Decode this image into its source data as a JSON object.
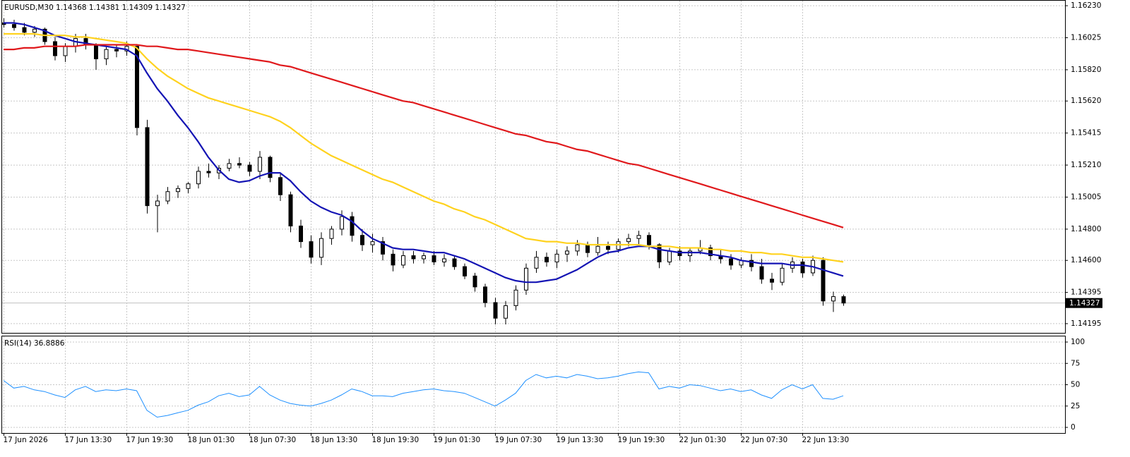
{
  "chart_data": [
    {
      "type": "candlestick",
      "title": "EURUSD,M30  1.14368 1.14381 1.14309 1.14327",
      "up_color": "#ffffff",
      "down_color": "#000000",
      "ohlc": [
        [
          1.1612,
          1.1615,
          1.1609,
          1.1611
        ],
        [
          1.1611,
          1.1614,
          1.1607,
          1.1609
        ],
        [
          1.1609,
          1.1612,
          1.1604,
          1.1606
        ],
        [
          1.1606,
          1.161,
          1.1603,
          1.1608
        ],
        [
          1.1608,
          1.1609,
          1.1598,
          1.16
        ],
        [
          1.16,
          1.1603,
          1.1588,
          1.1591
        ],
        [
          1.1591,
          1.1599,
          1.1587,
          1.1597
        ],
        [
          1.1597,
          1.1605,
          1.1593,
          1.1602
        ],
        [
          1.1602,
          1.1605,
          1.1595,
          1.1598
        ],
        [
          1.1598,
          1.1599,
          1.1582,
          1.1589
        ],
        [
          1.1589,
          1.1597,
          1.1585,
          1.1595
        ],
        [
          1.1595,
          1.1598,
          1.159,
          1.1594
        ],
        [
          1.1594,
          1.16,
          1.1591,
          1.1597
        ],
        [
          1.1597,
          1.1598,
          1.154,
          1.1545
        ],
        [
          1.1545,
          1.155,
          1.149,
          1.1495
        ],
        [
          1.1495,
          1.1502,
          1.1478,
          1.1498
        ],
        [
          1.1498,
          1.1507,
          1.1496,
          1.1504
        ],
        [
          1.1504,
          1.1508,
          1.15,
          1.1506
        ],
        [
          1.1506,
          1.151,
          1.1503,
          1.1509
        ],
        [
          1.1509,
          1.152,
          1.1506,
          1.1517
        ],
        [
          1.1517,
          1.1522,
          1.1513,
          1.1516
        ],
        [
          1.1516,
          1.1521,
          1.1512,
          1.1519
        ],
        [
          1.1519,
          1.1525,
          1.1517,
          1.1522
        ],
        [
          1.1522,
          1.1526,
          1.1519,
          1.1521
        ],
        [
          1.1521,
          1.1523,
          1.1514,
          1.1517
        ],
        [
          1.1517,
          1.153,
          1.1512,
          1.1526
        ],
        [
          1.1526,
          1.1527,
          1.151,
          1.1513
        ],
        [
          1.1513,
          1.1516,
          1.1498,
          1.1502
        ],
        [
          1.1502,
          1.1504,
          1.1478,
          1.1482
        ],
        [
          1.1482,
          1.1486,
          1.1468,
          1.1472
        ],
        [
          1.1472,
          1.1476,
          1.1458,
          1.1462
        ],
        [
          1.1462,
          1.1478,
          1.1457,
          1.1474
        ],
        [
          1.1474,
          1.1482,
          1.147,
          1.148
        ],
        [
          1.148,
          1.1492,
          1.1476,
          1.1488
        ],
        [
          1.1488,
          1.1491,
          1.1472,
          1.1476
        ],
        [
          1.1476,
          1.148,
          1.1466,
          1.147
        ],
        [
          1.147,
          1.1477,
          1.1465,
          1.1472
        ],
        [
          1.1472,
          1.1475,
          1.146,
          1.1464
        ],
        [
          1.1464,
          1.1467,
          1.1453,
          1.1457
        ],
        [
          1.1457,
          1.1466,
          1.1455,
          1.1463
        ],
        [
          1.1463,
          1.1466,
          1.1458,
          1.1461
        ],
        [
          1.1461,
          1.1465,
          1.1458,
          1.1463
        ],
        [
          1.1463,
          1.1466,
          1.1457,
          1.1459
        ],
        [
          1.1459,
          1.1464,
          1.1456,
          1.1461
        ],
        [
          1.1461,
          1.1463,
          1.1454,
          1.1456
        ],
        [
          1.1456,
          1.1458,
          1.1448,
          1.145
        ],
        [
          1.145,
          1.1452,
          1.144,
          1.1443
        ],
        [
          1.1443,
          1.1445,
          1.143,
          1.1433
        ],
        [
          1.1433,
          1.1436,
          1.1419,
          1.1423
        ],
        [
          1.1423,
          1.1434,
          1.1419,
          1.1431
        ],
        [
          1.1431,
          1.1444,
          1.1428,
          1.1441
        ],
        [
          1.1441,
          1.1458,
          1.1438,
          1.1455
        ],
        [
          1.1455,
          1.1466,
          1.1452,
          1.1462
        ],
        [
          1.1462,
          1.1465,
          1.1456,
          1.1459
        ],
        [
          1.1459,
          1.1467,
          1.1455,
          1.1464
        ],
        [
          1.1464,
          1.1469,
          1.1459,
          1.1466
        ],
        [
          1.1466,
          1.1473,
          1.1463,
          1.147
        ],
        [
          1.147,
          1.1472,
          1.1462,
          1.1465
        ],
        [
          1.1465,
          1.1475,
          1.1463,
          1.1469
        ],
        [
          1.1469,
          1.1472,
          1.1464,
          1.1467
        ],
        [
          1.1467,
          1.1474,
          1.1465,
          1.1472
        ],
        [
          1.1472,
          1.1477,
          1.1469,
          1.1474
        ],
        [
          1.1474,
          1.1479,
          1.147,
          1.1476
        ],
        [
          1.1476,
          1.1478,
          1.1467,
          1.147
        ],
        [
          1.147,
          1.1471,
          1.1455,
          1.1459
        ],
        [
          1.1459,
          1.1468,
          1.1457,
          1.1466
        ],
        [
          1.1466,
          1.1469,
          1.146,
          1.1463
        ],
        [
          1.1463,
          1.1468,
          1.1459,
          1.1466
        ],
        [
          1.1466,
          1.1473,
          1.1464,
          1.1468
        ],
        [
          1.1468,
          1.147,
          1.146,
          1.1463
        ],
        [
          1.1463,
          1.1467,
          1.1458,
          1.1461
        ],
        [
          1.1461,
          1.1464,
          1.1454,
          1.1457
        ],
        [
          1.1457,
          1.1462,
          1.1455,
          1.146
        ],
        [
          1.146,
          1.1464,
          1.1453,
          1.1456
        ],
        [
          1.1456,
          1.1461,
          1.1445,
          1.1448
        ],
        [
          1.1448,
          1.1452,
          1.1441,
          1.1446
        ],
        [
          1.1446,
          1.1458,
          1.1444,
          1.1455
        ],
        [
          1.1455,
          1.1462,
          1.1452,
          1.1459
        ],
        [
          1.1459,
          1.1461,
          1.1449,
          1.1452
        ],
        [
          1.1452,
          1.1463,
          1.145,
          1.146
        ],
        [
          1.146,
          1.1462,
          1.1431,
          1.1434
        ],
        [
          1.1434,
          1.144,
          1.1427,
          1.14368
        ],
        [
          1.14368,
          1.14381,
          1.14309,
          1.14327
        ]
      ],
      "series": [
        {
          "color": "#1414b4",
          "values": [
            1.1612,
            1.1612,
            1.1611,
            1.1609,
            1.1607,
            1.1604,
            1.1602,
            1.16,
            1.1599,
            1.1598,
            1.1597,
            1.1596,
            1.1595,
            1.1591,
            1.158,
            1.157,
            1.1562,
            1.1553,
            1.1545,
            1.1536,
            1.1526,
            1.1518,
            1.1512,
            1.151,
            1.1511,
            1.1514,
            1.1516,
            1.1516,
            1.1511,
            1.1504,
            1.1498,
            1.1494,
            1.1491,
            1.1489,
            1.1485,
            1.1479,
            1.1474,
            1.1471,
            1.1468,
            1.1467,
            1.1467,
            1.1466,
            1.1465,
            1.1465,
            1.1463,
            1.1461,
            1.1458,
            1.1455,
            1.1452,
            1.1449,
            1.1447,
            1.1446,
            1.1446,
            1.1447,
            1.1448,
            1.1451,
            1.1454,
            1.1458,
            1.1462,
            1.1465,
            1.1466,
            1.1468,
            1.1469,
            1.1469,
            1.1467,
            1.1466,
            1.1465,
            1.1465,
            1.1465,
            1.1464,
            1.1463,
            1.1462,
            1.146,
            1.1459,
            1.1458,
            1.1458,
            1.1458,
            1.1457,
            1.1457,
            1.1456,
            1.1454,
            1.1452,
            1.145
          ]
        },
        {
          "color": "#ffd21e",
          "values": [
            1.1605,
            1.1605,
            1.1605,
            1.1605,
            1.1604,
            1.1604,
            1.1604,
            1.1603,
            1.1603,
            1.1602,
            1.1601,
            1.16,
            1.1599,
            1.1596,
            1.1589,
            1.1583,
            1.1578,
            1.1574,
            1.157,
            1.1567,
            1.1564,
            1.1562,
            1.156,
            1.1558,
            1.1556,
            1.1554,
            1.1552,
            1.1549,
            1.1545,
            1.154,
            1.1535,
            1.1531,
            1.1527,
            1.1524,
            1.1521,
            1.1518,
            1.1515,
            1.1512,
            1.151,
            1.1507,
            1.1504,
            1.1501,
            1.1498,
            1.1496,
            1.1493,
            1.1491,
            1.1488,
            1.1486,
            1.1483,
            1.148,
            1.1477,
            1.1474,
            1.1473,
            1.1472,
            1.1472,
            1.1471,
            1.1471,
            1.147,
            1.147,
            1.147,
            1.147,
            1.147,
            1.147,
            1.1469,
            1.1469,
            1.1469,
            1.1468,
            1.1468,
            1.1468,
            1.1467,
            1.1467,
            1.1466,
            1.1466,
            1.1465,
            1.1465,
            1.1464,
            1.1464,
            1.1463,
            1.1462,
            1.1462,
            1.1461,
            1.146,
            1.1459
          ]
        },
        {
          "color": "#e0191c",
          "values": [
            1.1595,
            1.1595,
            1.1596,
            1.1596,
            1.1597,
            1.1597,
            1.1597,
            1.1597,
            1.1598,
            1.1598,
            1.1598,
            1.1598,
            1.1598,
            1.1598,
            1.1597,
            1.1597,
            1.1596,
            1.1595,
            1.1595,
            1.1594,
            1.1593,
            1.1592,
            1.1591,
            1.159,
            1.1589,
            1.1588,
            1.1587,
            1.1585,
            1.1584,
            1.1582,
            1.158,
            1.1578,
            1.1576,
            1.1574,
            1.1572,
            1.157,
            1.1568,
            1.1566,
            1.1564,
            1.1562,
            1.1561,
            1.1559,
            1.1557,
            1.1555,
            1.1553,
            1.1551,
            1.1549,
            1.1547,
            1.1545,
            1.1543,
            1.1541,
            1.154,
            1.1538,
            1.1536,
            1.1535,
            1.1533,
            1.1531,
            1.153,
            1.1528,
            1.1526,
            1.1524,
            1.1522,
            1.1521,
            1.1519,
            1.1517,
            1.1515,
            1.1513,
            1.1511,
            1.1509,
            1.1507,
            1.1505,
            1.1503,
            1.1501,
            1.1499,
            1.1497,
            1.1495,
            1.1493,
            1.1491,
            1.1489,
            1.1487,
            1.1485,
            1.1483,
            1.1481
          ]
        }
      ],
      "last_price": 1.14327,
      "ylim": [
        1.14136,
        1.16262
      ],
      "yticks": [
        {
          "value": 1.1623,
          "label": "1.16230"
        },
        1.16025,
        {
          "value": 1.1582,
          "label": "1.15820"
        },
        {
          "value": 1.1562,
          "label": "1.15620"
        },
        1.15415,
        {
          "value": 1.1521,
          "label": "1.15210"
        },
        1.15005,
        {
          "value": 1.148,
          "label": "1.14800"
        },
        {
          "value": 1.146,
          "label": "1.14600"
        },
        1.14395,
        1.14195
      ],
      "xticks": [
        {
          "value": 0,
          "label": "17 Jun 2026"
        },
        {
          "value": 6,
          "label": "17 Jun 13:30"
        },
        {
          "value": 12,
          "label": "17 Jun 19:30"
        },
        {
          "value": 18,
          "label": "18 Jun 01:30"
        },
        {
          "value": 24,
          "label": "18 Jun 07:30"
        },
        {
          "value": 30,
          "label": "18 Jun 13:30"
        },
        {
          "value": 36,
          "label": "18 Jun 19:30"
        },
        {
          "value": 42,
          "label": "19 Jun 01:30"
        },
        {
          "value": 48,
          "label": "19 Jun 07:30"
        },
        {
          "value": 54,
          "label": "19 Jun 13:30"
        },
        {
          "value": 60,
          "label": "19 Jun 19:30"
        },
        {
          "value": 66,
          "label": "22 Jun 01:30"
        },
        {
          "value": 72,
          "label": "22 Jun 07:30"
        },
        {
          "value": 78,
          "label": "22 Jun 13:30"
        }
      ],
      "grid": true
    },
    {
      "type": "line",
      "title": "RSI(14) 36.8886",
      "color": "#1e90ff",
      "values": [
        55,
        46,
        48,
        44,
        42,
        38,
        35,
        44,
        48,
        42,
        44,
        43,
        45,
        43,
        20,
        12,
        14,
        17,
        20,
        26,
        30,
        37,
        40,
        36,
        38,
        48,
        38,
        32,
        28,
        26,
        25,
        28,
        32,
        38,
        45,
        42,
        37,
        37,
        36,
        40,
        42,
        44,
        45,
        43,
        42,
        40,
        35,
        30,
        25,
        32,
        40,
        55,
        62,
        58,
        60,
        58,
        62,
        60,
        57,
        58,
        60,
        63,
        65,
        64,
        45,
        48,
        46,
        50,
        49,
        46,
        43,
        45,
        42,
        44,
        38,
        34,
        44,
        50,
        45,
        50,
        34,
        33,
        37
      ],
      "ylim": [
        0,
        100
      ],
      "yticks": [
        0,
        25,
        50,
        75,
        100
      ],
      "grid": true
    }
  ]
}
